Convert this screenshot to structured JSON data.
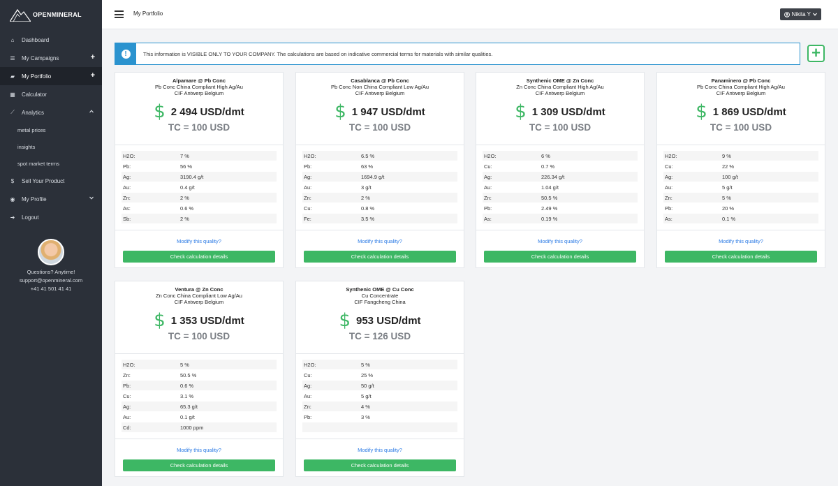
{
  "app": {
    "logo_text": "OPENMINERAL",
    "page_title": "My Portfolio",
    "user_label": "Nikita Y"
  },
  "nav": [
    {
      "label": "Dashboard",
      "icon": "home-icon",
      "glyph": "⌂",
      "right": "",
      "active": false
    },
    {
      "label": "My Campaigns",
      "icon": "list-icon",
      "glyph": "☰",
      "right": "+",
      "active": false
    },
    {
      "label": "My Portfolio",
      "icon": "briefcase-icon",
      "glyph": "▰",
      "right": "+",
      "active": true
    },
    {
      "label": "Calculator",
      "icon": "calculator-icon",
      "glyph": "▦",
      "right": "",
      "active": false
    },
    {
      "label": "Analytics",
      "icon": "chart-icon",
      "glyph": "⟋",
      "right": "chev-up",
      "active": false
    }
  ],
  "analytics_sub": [
    "metal prices",
    "insights",
    "spot market terms"
  ],
  "nav2": [
    {
      "label": "Sell Your Product",
      "icon": "dollar-icon",
      "glyph": "$",
      "right": ""
    },
    {
      "label": "My Profile",
      "icon": "user-circle-icon",
      "glyph": "◉",
      "right": "chev-down"
    },
    {
      "label": "Logout",
      "icon": "logout-icon",
      "glyph": "➜",
      "right": ""
    }
  ],
  "support": {
    "line1": "Questions? Anytime!",
    "email": "support@openmineral.com",
    "phone": "+41 41 501 41 41"
  },
  "info": {
    "text": "This information is VISIBLE ONLY TO YOUR COMPANY. The calculations are based on indicative commercial terms for materials with similar qualities."
  },
  "card_labels": {
    "modify": "Modify this quality?",
    "check": "Check calculation details"
  },
  "cards": [
    {
      "title": "Alpamare @ Pb Conc",
      "sub1": "Pb Conc China Compliant High Ag/Au",
      "sub2": "CIF Antwerp Belgium",
      "price": "2 494 USD/dmt",
      "tc": "TC = 100 USD",
      "rows": [
        [
          "H2O:",
          "7 %"
        ],
        [
          "Pb:",
          "56 %"
        ],
        [
          "Ag:",
          "3190.4 g/t"
        ],
        [
          "Au:",
          "0.4 g/t"
        ],
        [
          "Zn:",
          "2 %"
        ],
        [
          "As:",
          "0.6 %"
        ],
        [
          "Sb:",
          "2 %"
        ]
      ]
    },
    {
      "title": "Casablanca @ Pb Conc",
      "sub1": "Pb Conc Non China Compliant Low Ag/Au",
      "sub2": "CIF Antwerp Belgium",
      "price": "1 947 USD/dmt",
      "tc": "TC = 100 USD",
      "rows": [
        [
          "H2O:",
          "6.5 %"
        ],
        [
          "Pb:",
          "63 %"
        ],
        [
          "Ag:",
          "1694.9 g/t"
        ],
        [
          "Au:",
          "3 g/t"
        ],
        [
          "Zn:",
          "2 %"
        ],
        [
          "Cu:",
          "0.8 %"
        ],
        [
          "Fe:",
          "3.5 %"
        ]
      ]
    },
    {
      "title": "Synthenic OME @ Zn Conc",
      "sub1": "Zn Conc China Compliant High Ag/Au",
      "sub2": "CIF Antwerp Belgium",
      "price": "1 309 USD/dmt",
      "tc": "TC = 100 USD",
      "rows": [
        [
          "H2O:",
          "6 %"
        ],
        [
          "Cu:",
          "0.7 %"
        ],
        [
          "Ag:",
          "226.34 g/t"
        ],
        [
          "Au:",
          "1.04 g/t"
        ],
        [
          "Zn:",
          "50.5 %"
        ],
        [
          "Pb:",
          "2.49 %"
        ],
        [
          "As:",
          "0.19 %"
        ]
      ]
    },
    {
      "title": "Panaminero @ Pb Conc",
      "sub1": "Pb Conc China Compliant High Ag/Au",
      "sub2": "CIF Antwerp Belgium",
      "price": "1 869 USD/dmt",
      "tc": "TC = 100 USD",
      "rows": [
        [
          "H2O:",
          "9 %"
        ],
        [
          "Cu:",
          "22 %"
        ],
        [
          "Ag:",
          "100 g/t"
        ],
        [
          "Au:",
          "5 g/t"
        ],
        [
          "Zn:",
          "5 %"
        ],
        [
          "Pb:",
          "20 %"
        ],
        [
          "As:",
          "0.1 %"
        ]
      ]
    },
    {
      "title": "Ventura @ Zn Conc",
      "sub1": "Zn Conc China Compliant Low Ag/Au",
      "sub2": "CIF Antwerp Belgium",
      "price": "1 353 USD/dmt",
      "tc": "TC = 100 USD",
      "rows": [
        [
          "H2O:",
          "5 %"
        ],
        [
          "Zn:",
          "50.5 %"
        ],
        [
          "Pb:",
          "0.6 %"
        ],
        [
          "Cu:",
          "3.1 %"
        ],
        [
          "Ag:",
          "65.3 g/t"
        ],
        [
          "Au:",
          "0.1 g/t"
        ],
        [
          "Cd:",
          "1000 ppm"
        ]
      ]
    },
    {
      "title": "Synthenic OME @ Cu Conc",
      "sub1": "Cu Concentrate",
      "sub2": "CIF Fangcheng China",
      "price": "953 USD/dmt",
      "tc": "TC = 126 USD",
      "rows": [
        [
          "H2O:",
          "5 %"
        ],
        [
          "Cu:",
          "25 %"
        ],
        [
          "Ag:",
          "50 g/t"
        ],
        [
          "Au:",
          "5 g/t"
        ],
        [
          "Zn:",
          "4 %"
        ],
        [
          "Pb:",
          "3 %"
        ],
        [
          "",
          ""
        ]
      ]
    }
  ]
}
